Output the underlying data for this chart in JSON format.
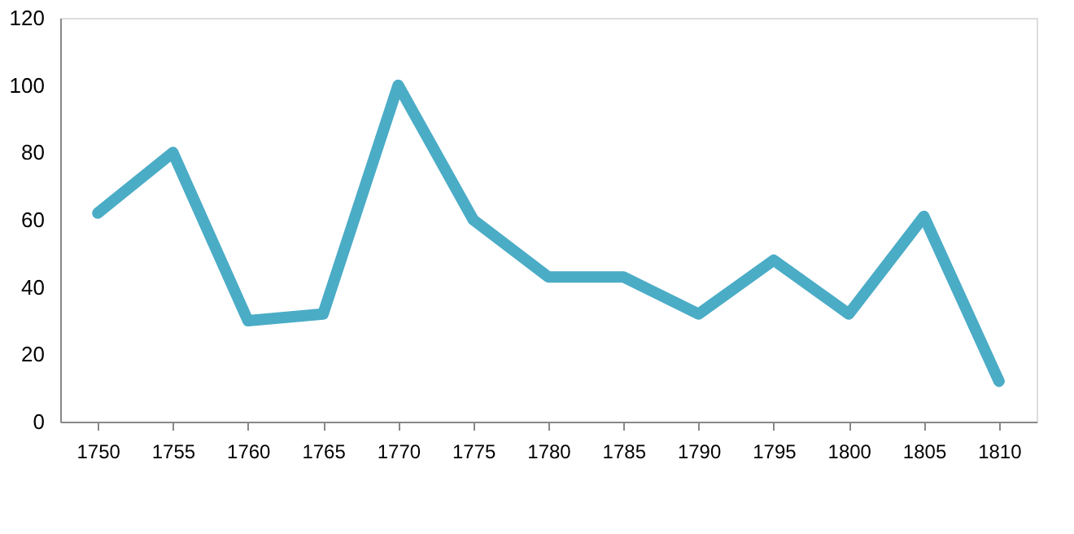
{
  "chart_data": {
    "type": "line",
    "categories": [
      "1750",
      "1755",
      "1760",
      "1765",
      "1770",
      "1775",
      "1780",
      "1785",
      "1790",
      "1795",
      "1800",
      "1805",
      "1810"
    ],
    "series": [
      {
        "color": "#4bacc6",
        "values": [
          62,
          80,
          30,
          32,
          100,
          60,
          43,
          43,
          32,
          48,
          32,
          61,
          12
        ]
      }
    ],
    "ylim": [
      0,
      120
    ],
    "yticks": [
      0,
      20,
      40,
      60,
      80,
      100,
      120
    ],
    "grid": false,
    "marker": "none",
    "line_style": "solid"
  }
}
